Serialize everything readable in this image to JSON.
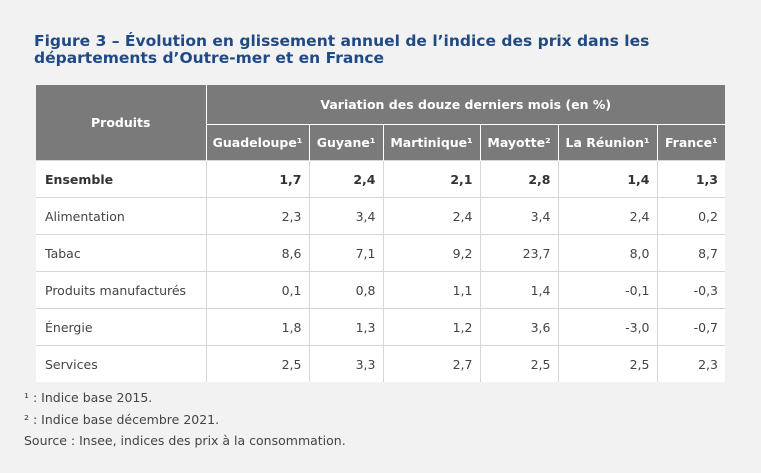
{
  "title": "Figure 3 – Évolution en glissement annuel de l’indice des prix dans les départements d’Outre-mer et en France",
  "table": {
    "products_header": "Produits",
    "group_header": "Variation des douze derniers mois (en %)",
    "columns": [
      "Guadeloupe¹",
      "Guyane¹",
      "Martinique¹",
      "Mayotte²",
      "La Réunion¹",
      "France¹"
    ],
    "rows": [
      {
        "label": "Ensemble",
        "values": [
          "1,7",
          "2,4",
          "2,1",
          "2,8",
          "1,4",
          "1,3"
        ]
      },
      {
        "label": "Alimentation",
        "values": [
          "2,3",
          "3,4",
          "2,4",
          "3,4",
          "2,4",
          "0,2"
        ]
      },
      {
        "label": "Tabac",
        "values": [
          "8,6",
          "7,1",
          "9,2",
          "23,7",
          "8,0",
          "8,7"
        ]
      },
      {
        "label": "Produits manufacturés",
        "values": [
          "0,1",
          "0,8",
          "1,1",
          "1,4",
          "-0,1",
          "-0,3"
        ]
      },
      {
        "label": "Énergie",
        "values": [
          "1,8",
          "1,3",
          "1,2",
          "3,6",
          "-3,0",
          "-0,7"
        ]
      },
      {
        "label": "Services",
        "values": [
          "2,5",
          "3,3",
          "2,7",
          "2,5",
          "2,5",
          "2,3"
        ]
      }
    ]
  },
  "notes": {
    "note1": "¹ : Indice base 2015.",
    "note2": "² : Indice base décembre 2021.",
    "source": "Source : Insee, indices des prix à la consommation."
  }
}
